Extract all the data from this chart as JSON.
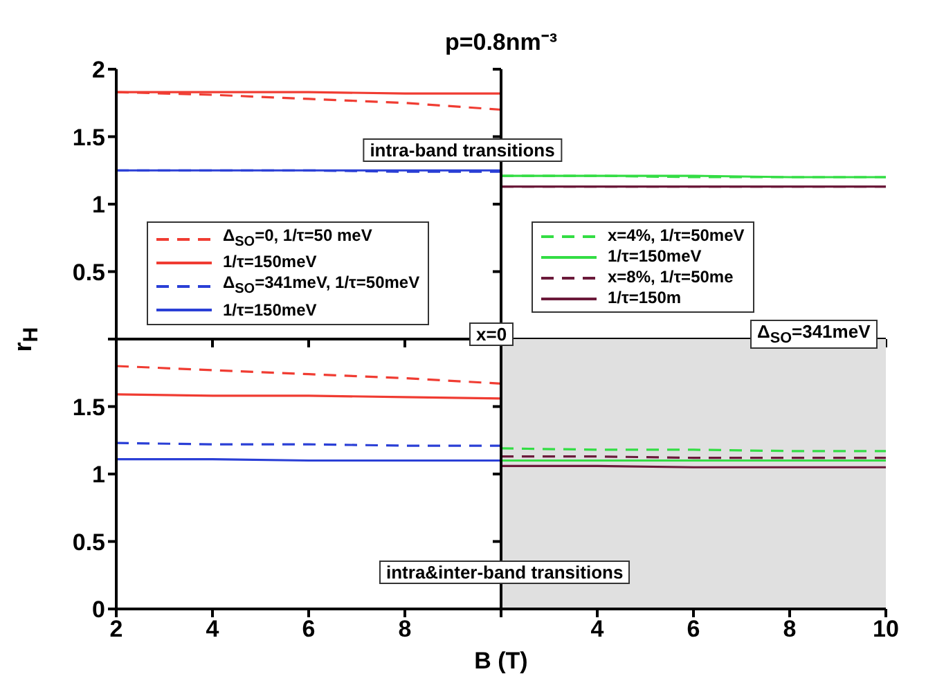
{
  "chart_data": [
    {
      "type": "line",
      "title": "p=0.8nm⁻³",
      "ylabel": "r$_{H}$",
      "x": [
        2,
        4,
        6,
        8,
        10
      ],
      "xlim": [
        2,
        10
      ],
      "xticks": [
        2,
        4,
        6,
        8,
        10
      ],
      "ylim": [
        0,
        2
      ],
      "yticks": [
        0.5,
        1,
        1.5,
        2
      ],
      "tick_labels": "y",
      "legend": "bottom left",
      "annotations": [
        "intra-band transitions"
      ],
      "series": [
        {
          "name": "Δ$_{SO}$=0, 1/τ=50 meV",
          "color": "#f03c32",
          "line_style": "dashed",
          "values": [
            1.83,
            1.81,
            1.78,
            1.75,
            1.7
          ]
        },
        {
          "name": "1/τ=150meV",
          "color": "#f03c32",
          "line_style": "solid",
          "values": [
            1.83,
            1.83,
            1.83,
            1.82,
            1.82
          ]
        },
        {
          "name": "Δ$_{SO}$=341meV, 1/τ=50meV",
          "color": "#2a3fd6",
          "line_style": "dashed",
          "values": [
            1.25,
            1.25,
            1.25,
            1.24,
            1.24
          ]
        },
        {
          "name": "1/τ=150meV",
          "color": "#2a3fd6",
          "line_style": "solid",
          "values": [
            1.25,
            1.25,
            1.25,
            1.25,
            1.25
          ]
        }
      ]
    },
    {
      "type": "line",
      "x": [
        2,
        4,
        6,
        8,
        10
      ],
      "xlim": [
        2,
        10
      ],
      "xticks": [
        2,
        4,
        6,
        8,
        10
      ],
      "ylim": [
        0,
        2
      ],
      "yticks": [
        0.5,
        1,
        1.5,
        2
      ],
      "tick_labels": false,
      "legend": "bottom left",
      "series": [
        {
          "name": "x=4%, 1/τ=50meV",
          "color": "#33dd44",
          "line_style": "dashed",
          "values": [
            1.21,
            1.21,
            1.2,
            1.2,
            1.2
          ]
        },
        {
          "name": "1/τ=150meV",
          "color": "#33dd44",
          "line_style": "solid",
          "values": [
            1.21,
            1.21,
            1.21,
            1.2,
            1.2
          ]
        },
        {
          "name": "x=8%, 1/τ=50me",
          "color": "#6b1a3a",
          "line_style": "dashed",
          "values": [
            1.13,
            1.13,
            1.13,
            1.13,
            1.13
          ]
        },
        {
          "name": "1/τ=150m",
          "color": "#6b1a3a",
          "line_style": "solid",
          "values": [
            1.13,
            1.13,
            1.13,
            1.13,
            1.13
          ]
        }
      ]
    },
    {
      "type": "line",
      "xlabel": "B (T)",
      "x": [
        2,
        4,
        6,
        8,
        10
      ],
      "xlim": [
        2,
        10
      ],
      "xticks": [
        2,
        4,
        6,
        8,
        {
          "value": 10,
          "label": null
        }
      ],
      "ylim": [
        0,
        2
      ],
      "yticks": [
        0,
        0.5,
        1,
        1.5,
        {
          "value": 2,
          "label": null
        }
      ],
      "annotations": [
        "x=0",
        "intra&inter-band transitions"
      ],
      "series": [
        {
          "color": "#f03c32",
          "line_style": "dashed",
          "values": [
            1.8,
            1.77,
            1.74,
            1.71,
            1.67
          ]
        },
        {
          "color": "#f03c32",
          "line_style": "solid",
          "values": [
            1.59,
            1.58,
            1.58,
            1.57,
            1.56
          ]
        },
        {
          "color": "#2a3fd6",
          "line_style": "dashed",
          "values": [
            1.23,
            1.22,
            1.22,
            1.21,
            1.21
          ]
        },
        {
          "color": "#2a3fd6",
          "line_style": "solid",
          "values": [
            1.11,
            1.11,
            1.1,
            1.1,
            1.1
          ]
        }
      ]
    },
    {
      "type": "line",
      "x": [
        2,
        4,
        6,
        8,
        10
      ],
      "xlim": [
        2,
        10
      ],
      "xticks": [
        {
          "value": 2,
          "label": null
        },
        4,
        6,
        8,
        10
      ],
      "ylim": [
        0,
        2
      ],
      "yticks": [
        0.5,
        1,
        1.5,
        2
      ],
      "tick_labels": "x",
      "bands": [
        {
          "axis": "x",
          "from": 2,
          "to": 10,
          "color": "#e0e0e0"
        }
      ],
      "annotations": [
        "Δ$_{SO}$=341meV"
      ],
      "series": [
        {
          "color": "#33dd44",
          "line_style": "dashed",
          "values": [
            1.19,
            1.18,
            1.18,
            1.17,
            1.17
          ]
        },
        {
          "color": "#33dd44",
          "line_style": "solid",
          "values": [
            1.1,
            1.1,
            1.1,
            1.1,
            1.1
          ]
        },
        {
          "color": "#6b1a3a",
          "line_style": "dashed",
          "values": [
            1.13,
            1.13,
            1.12,
            1.12,
            1.12
          ]
        },
        {
          "color": "#6b1a3a",
          "line_style": "solid",
          "values": [
            1.06,
            1.06,
            1.05,
            1.05,
            1.05
          ]
        }
      ]
    }
  ]
}
